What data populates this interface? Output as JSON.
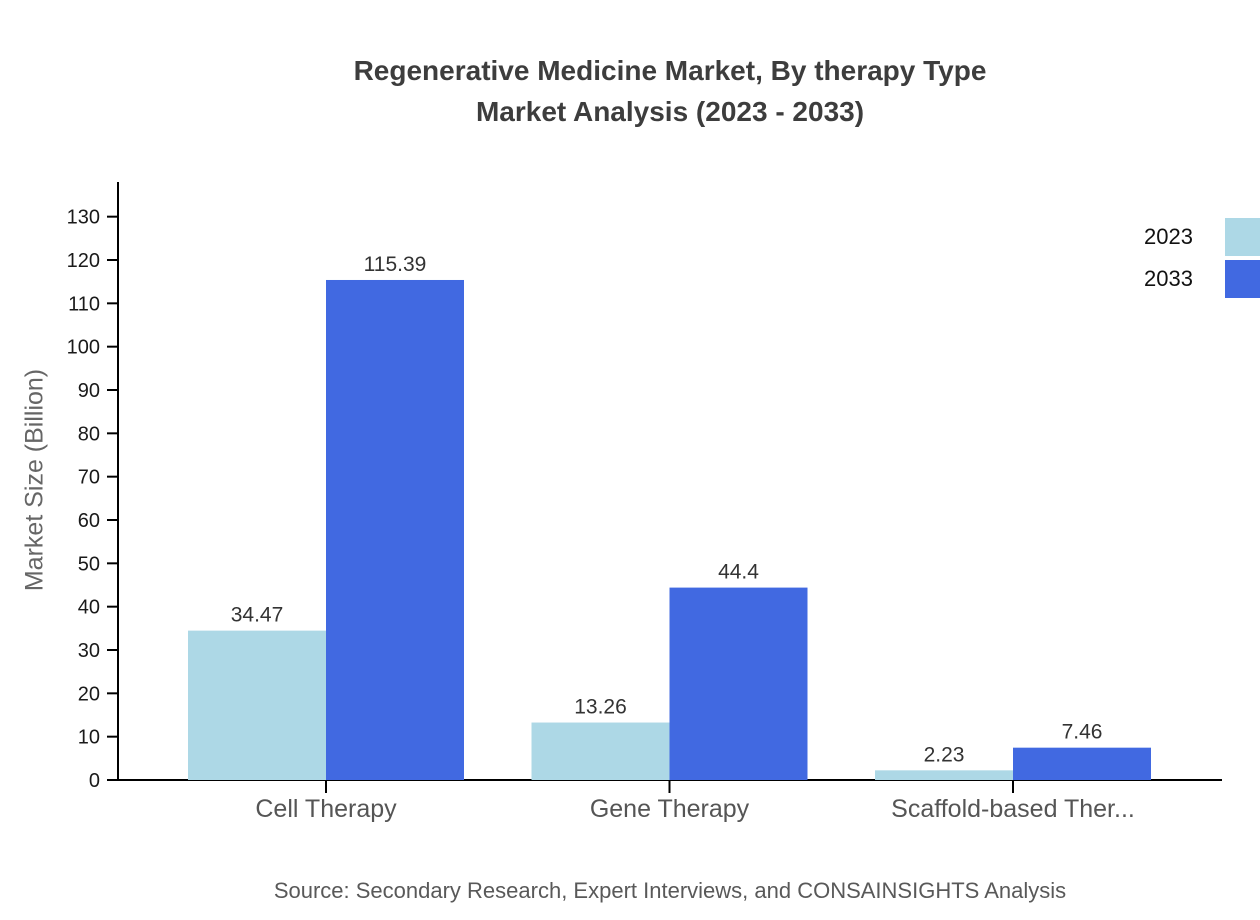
{
  "chart_data": {
    "type": "bar",
    "title": "Regenerative Medicine Market, By therapy Type Market Analysis (2023 - 2033)",
    "title_lines": [
      "Regenerative Medicine Market, By therapy Type",
      "Market Analysis (2023 - 2033)"
    ],
    "categories": [
      "Cell Therapy",
      "Gene Therapy",
      "Scaffold-based Ther..."
    ],
    "series": [
      {
        "name": "2023",
        "color": "#ADD8E6",
        "values": [
          34.47,
          13.26,
          2.23
        ]
      },
      {
        "name": "2033",
        "color": "#4169E1",
        "values": [
          115.39,
          44.4,
          7.46
        ]
      }
    ],
    "xlabel": "",
    "ylabel": "Market Size (Billion)",
    "ylim": [
      0,
      138
    ],
    "yticks": [
      0,
      10,
      20,
      30,
      40,
      50,
      60,
      70,
      80,
      90,
      100,
      110,
      120,
      130
    ],
    "grid": false,
    "legend_position": "top-right",
    "value_labels_shown": true
  },
  "source_note": "Source: Secondary Research, Expert Interviews, and CONSAINSIGHTS Analysis",
  "colors": {
    "axis": "#000000",
    "title_text": "#3d3d3d",
    "tick_text": "#1a1a1a",
    "category_text": "#555555",
    "value_text": "#333333",
    "ylabel_text": "#666666",
    "legend_text": "#111111",
    "source_text": "#595959",
    "series_2023": "#ADD8E6",
    "series_2033": "#4169E1"
  }
}
